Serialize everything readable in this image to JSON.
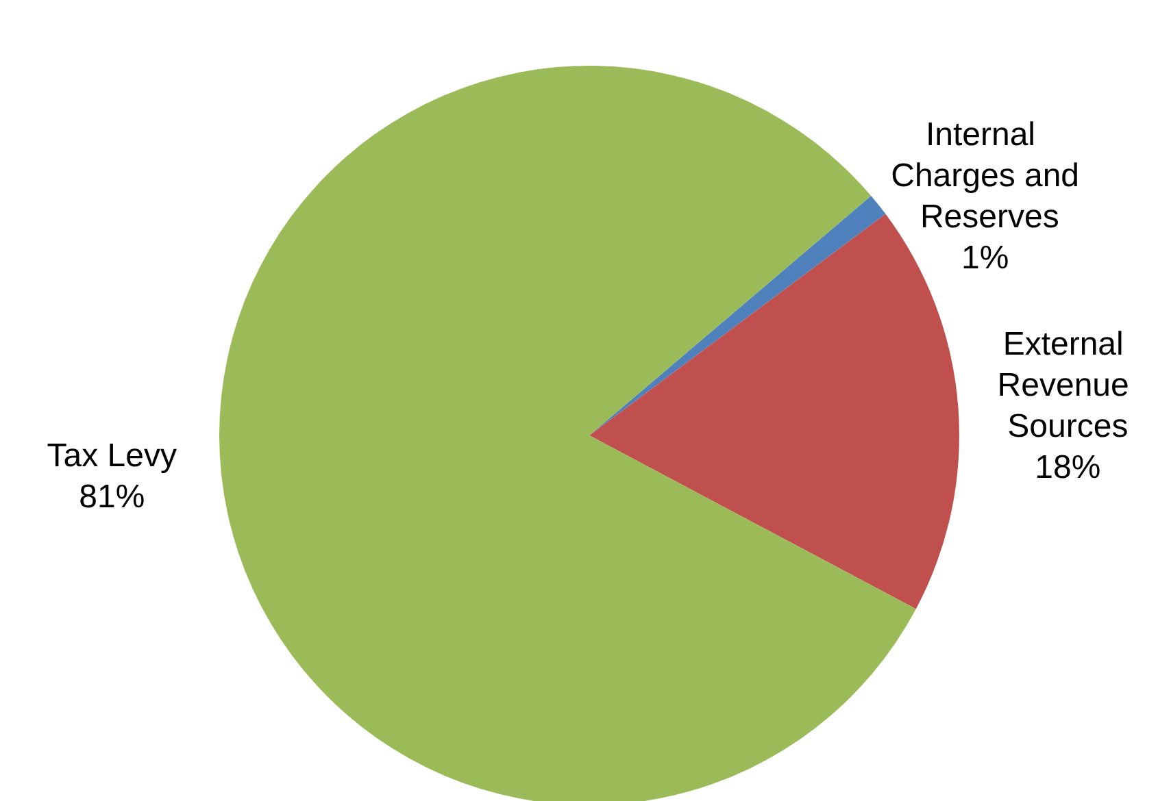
{
  "chart_data": {
    "type": "pie",
    "categories": [
      "Internal Charges and Reserves",
      "External Revenue Sources",
      "Tax Levy"
    ],
    "values": [
      1,
      18,
      81
    ],
    "value_labels": [
      "1%",
      "18%",
      "81%"
    ],
    "colors": [
      "#4f81bd",
      "#c0504d",
      "#9bbb59"
    ],
    "legend": false
  }
}
